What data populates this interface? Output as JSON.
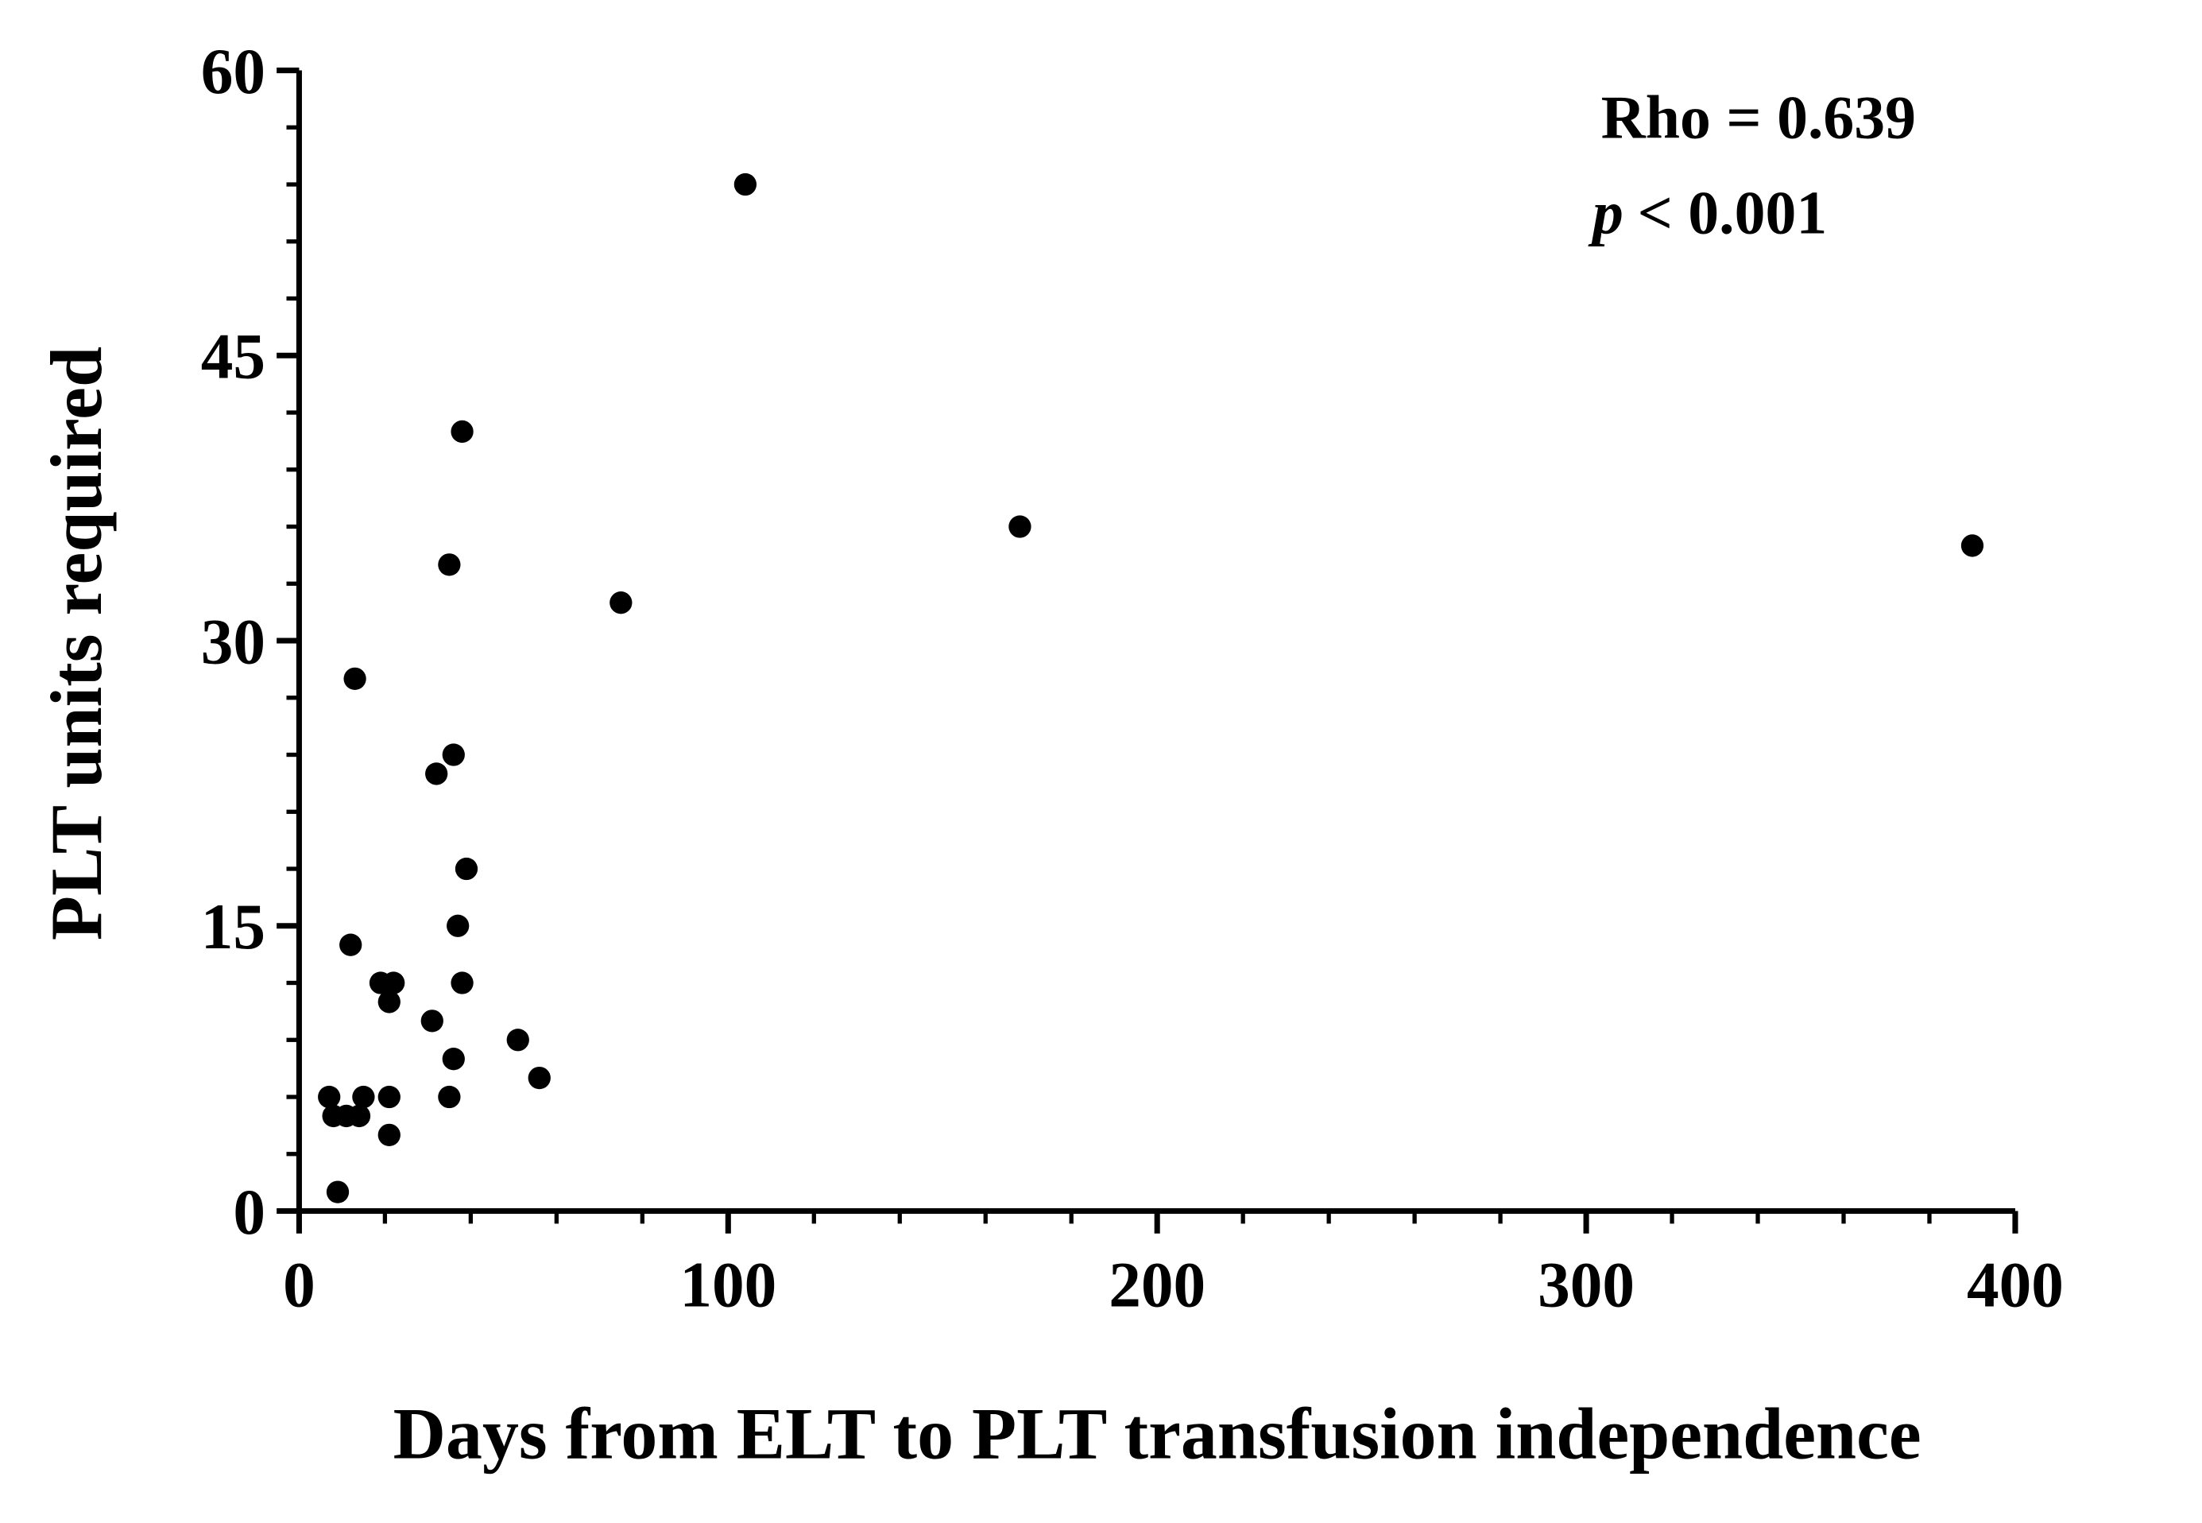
{
  "chart_data": {
    "type": "scatter",
    "xlabel": "Days from ELT to PLT transfusion independence",
    "ylabel": "PLT units required",
    "annotations": [
      {
        "text": "Rho = 0.639"
      },
      {
        "prefix": "p",
        "text": "< 0.001"
      }
    ],
    "x": [
      7,
      8,
      9,
      11,
      12,
      13,
      14,
      15,
      19,
      21,
      21,
      21,
      22,
      31,
      32,
      35,
      35,
      36,
      36,
      37,
      38,
      38,
      39,
      51,
      56,
      75,
      104,
      168,
      390
    ],
    "values": [
      6,
      5,
      1,
      5,
      14,
      28,
      5,
      6,
      12,
      11,
      6,
      4,
      12,
      10,
      23,
      34,
      6,
      24,
      8,
      15,
      12,
      41,
      18,
      9,
      7,
      32,
      54,
      36,
      35
    ],
    "color": "#000000",
    "xlim": [
      0,
      400
    ],
    "xticks": [
      0,
      100,
      200,
      300,
      400
    ],
    "xminorticks": [
      20,
      40,
      60,
      80,
      120,
      140,
      160,
      180,
      220,
      240,
      260,
      280,
      320,
      340,
      360,
      380
    ],
    "ylim": [
      0,
      60
    ],
    "yticks": [
      0,
      15,
      30,
      45,
      60
    ],
    "yminorticks": [
      3,
      6,
      9,
      12,
      18,
      21,
      24,
      27,
      33,
      36,
      39,
      42,
      48,
      51,
      54,
      57
    ]
  }
}
